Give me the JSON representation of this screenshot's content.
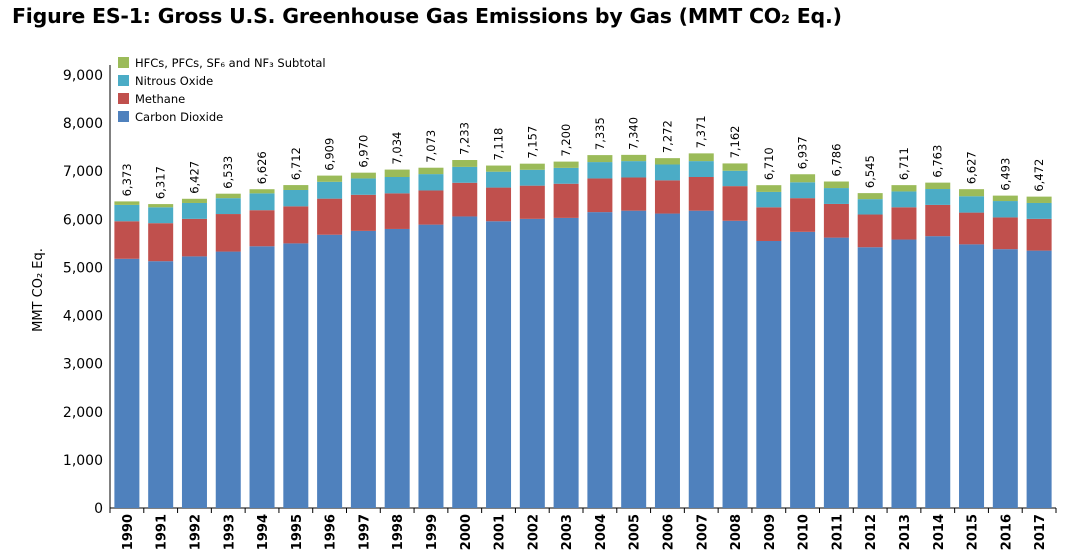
{
  "title": "Figure ES-1:  Gross U.S. Greenhouse Gas Emissions by Gas (MMT CO₂ Eq.)",
  "chart_data": {
    "type": "bar",
    "stacked": true,
    "title": "Figure ES-1:  Gross U.S. Greenhouse Gas Emissions by Gas (MMT CO₂ Eq.)",
    "xlabel": "",
    "ylabel": "MMT CO₂ Eq.",
    "ylim": [
      0,
      9000
    ],
    "yticks": [
      0,
      1000,
      2000,
      3000,
      4000,
      5000,
      6000,
      7000,
      8000,
      9000
    ],
    "ytick_labels": [
      "0",
      "1,000",
      "2,000",
      "3,000",
      "4,000",
      "5,000",
      "6,000",
      "7,000",
      "8,000",
      "9,000"
    ],
    "grid": false,
    "legend_position": "top-left",
    "categories": [
      "1990",
      "1991",
      "1992",
      "1993",
      "1994",
      "1995",
      "1996",
      "1997",
      "1998",
      "1999",
      "2000",
      "2001",
      "2002",
      "2003",
      "2004",
      "2005",
      "2006",
      "2007",
      "2008",
      "2009",
      "2010",
      "2011",
      "2012",
      "2013",
      "2014",
      "2015",
      "2016",
      "2017"
    ],
    "series": [
      {
        "name": "Carbon Dioxide",
        "color": "#4f81bd",
        "values": [
          5180,
          5130,
          5230,
          5330,
          5440,
          5500,
          5680,
          5760,
          5800,
          5890,
          6060,
          5960,
          6010,
          6030,
          6150,
          6180,
          6120,
          6180,
          5970,
          5550,
          5740,
          5620,
          5420,
          5580,
          5650,
          5480,
          5380,
          5350
        ]
      },
      {
        "name": "Methane",
        "color": "#c0504d",
        "values": [
          780,
          790,
          780,
          780,
          750,
          770,
          750,
          750,
          740,
          710,
          700,
          700,
          690,
          710,
          700,
          690,
          690,
          700,
          720,
          700,
          700,
          700,
          680,
          670,
          650,
          660,
          660,
          660
        ]
      },
      {
        "name": "Nitrous Oxide",
        "color": "#4bacc6",
        "values": [
          340,
          330,
          330,
          330,
          350,
          340,
          350,
          340,
          340,
          340,
          330,
          330,
          330,
          330,
          340,
          340,
          330,
          330,
          320,
          320,
          330,
          330,
          320,
          330,
          330,
          340,
          340,
          330
        ]
      },
      {
        "name": "HFCs, PFCs, SF₆ and NF₃ Subtotal",
        "color": "#9bbb59",
        "values": [
          73,
          67,
          87,
          93,
          86,
          102,
          129,
          120,
          154,
          133,
          143,
          128,
          127,
          130,
          145,
          130,
          132,
          161,
          152,
          140,
          167,
          136,
          125,
          131,
          133,
          147,
          113,
          132
        ]
      }
    ],
    "totals": [
      6373,
      6317,
      6427,
      6533,
      6626,
      6712,
      6909,
      6970,
      7034,
      7073,
      7233,
      7118,
      7157,
      7200,
      7335,
      7340,
      7272,
      7371,
      7162,
      6710,
      6937,
      6786,
      6545,
      6711,
      6763,
      6627,
      6493,
      6472
    ],
    "total_labels": [
      "6,373",
      "6,317",
      "6,427",
      "6,533",
      "6,626",
      "6,712",
      "6,909",
      "6,970",
      "7,034",
      "7,073",
      "7,233",
      "7,118",
      "7,157",
      "7,200",
      "7,335",
      "7,340",
      "7,272",
      "7,371",
      "7,162",
      "6,710",
      "6,937",
      "6,786",
      "6,545",
      "6,711",
      "6,763",
      "6,627",
      "6,493",
      "6,472"
    ],
    "legend_order": [
      "HFCs, PFCs, SF₆ and NF₃ Subtotal",
      "Nitrous Oxide",
      "Methane",
      "Carbon Dioxide"
    ]
  }
}
